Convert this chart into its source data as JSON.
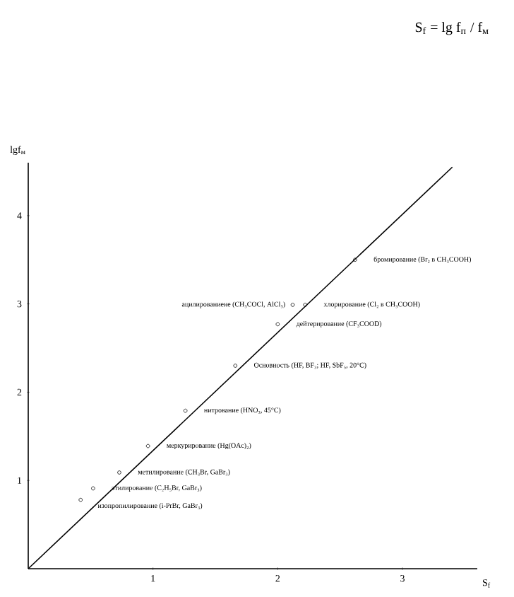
{
  "chart_data": {
    "type": "scatter",
    "title": "S$_{f}$ = lg f$_{п}$ / f$_{м}$",
    "xlabel": "S$_{f}$",
    "ylabel": "lgf$_{м}$",
    "xlim": [
      0,
      3.6
    ],
    "ylim": [
      0,
      4.6
    ],
    "xticks": [
      1,
      2,
      3
    ],
    "yticks": [
      1,
      2,
      3,
      4
    ],
    "grid": false,
    "series": [
      {
        "color": "#000000",
        "marker": "circle",
        "x": [
          2.62,
          2.12,
          2.22,
          2.0,
          1.66,
          1.26,
          0.96,
          0.73,
          0.52,
          0.42
        ],
        "values": [
          3.5,
          2.99,
          2.99,
          2.77,
          2.3,
          1.79,
          1.39,
          1.09,
          0.91,
          0.78
        ]
      },
      {
        "type": "line",
        "color": "#000000",
        "marker": "none",
        "line_style": "solid",
        "x": [
          0,
          3.4
        ],
        "values": [
          0,
          4.55
        ]
      }
    ],
    "annotations": [
      {
        "text": "бромирование (Br₂ в CH₃COOH)",
        "x": 2.62,
        "y": 3.5
      },
      {
        "text": "ацилированиене (CH₃COCl, AlCl₃)",
        "x": 2.12,
        "y": 2.99
      },
      {
        "text": "хлорирование (Cl₂ в CH₃COOH)",
        "x": 2.22,
        "y": 2.99
      },
      {
        "text": "дейтерирование (CF₃COOD)",
        "x": 2.0,
        "y": 2.77
      },
      {
        "text": "Основность (HF, BF₃; HF, SbF₅, 20°C)",
        "x": 1.66,
        "y": 2.3
      },
      {
        "text": "нитрование (HNO₃, 45°C)",
        "x": 1.26,
        "y": 1.79
      },
      {
        "text": "меркурирование (Hg(OAc)₂)",
        "x": 0.96,
        "y": 1.39
      },
      {
        "text": "метилирование (CH₃Br, GaBr₃)",
        "x": 0.73,
        "y": 1.09
      },
      {
        "text": "этилирование (C₂H₅Br, GaBr₃)",
        "x": 0.52,
        "y": 0.91
      },
      {
        "text": "изопропилирование (i-PrBr, GaBr₃)",
        "x": 0.42,
        "y": 0.78
      }
    ]
  }
}
